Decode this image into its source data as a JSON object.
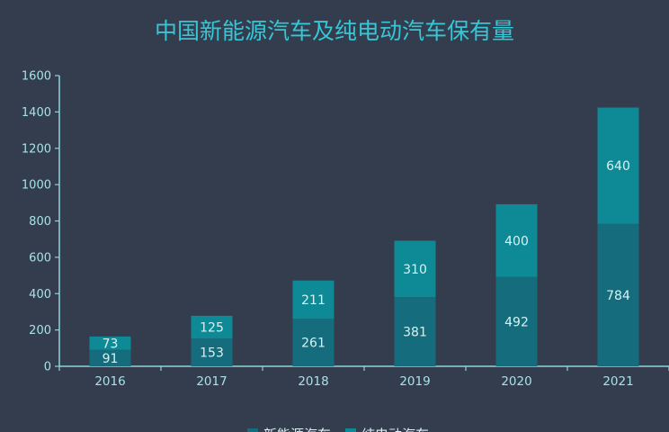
{
  "chart_data": {
    "type": "bar",
    "stacked": true,
    "title": "中国新能源汽车及纯电动汽车保有量",
    "xlabel": "",
    "ylabel": "",
    "categories": [
      "2016",
      "2017",
      "2018",
      "2019",
      "2020",
      "2021"
    ],
    "series": [
      {
        "name": "新能源汽车",
        "values": [
          91,
          153,
          261,
          381,
          492,
          784
        ],
        "color": "#146c7c"
      },
      {
        "name": "纯电动汽车",
        "values": [
          73,
          125,
          211,
          310,
          400,
          640
        ],
        "color": "#0e8a96"
      }
    ],
    "ylim": [
      0,
      1600
    ],
    "yticks": [
      0,
      200,
      400,
      600,
      800,
      1000,
      1200,
      1400,
      1600
    ],
    "grid": false,
    "legend": "bottom",
    "data_labels": true
  },
  "colors": {
    "background": "#333d4e",
    "title": "#36c6d6",
    "axis": "#8fd3da",
    "tick_text": "#a7e2e7",
    "label_text": "#d9f1f3"
  }
}
